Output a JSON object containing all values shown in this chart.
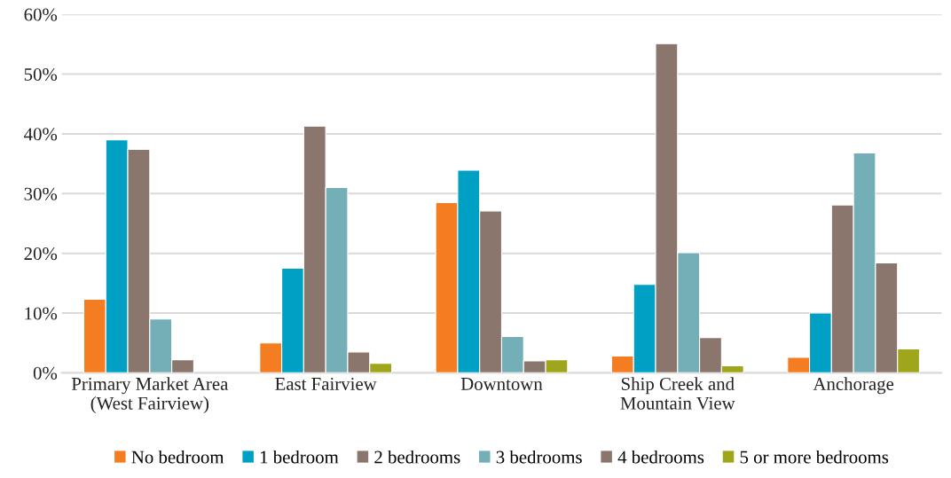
{
  "chart_data": {
    "type": "bar",
    "categories": [
      "Primary Market Area\n(West Fairview)",
      "East Fairview",
      "Downtown",
      "Ship Creek and\nMountain View",
      "Anchorage"
    ],
    "series": [
      {
        "name": "No bedroom",
        "color": "#f47d21",
        "values": [
          12.3,
          5.0,
          28.5,
          2.8,
          2.6
        ]
      },
      {
        "name": "1 bedroom",
        "color": "#00a0c4",
        "values": [
          39.0,
          17.5,
          33.9,
          14.8,
          10.0
        ]
      },
      {
        "name": "2 bedrooms",
        "color": "#8a766c",
        "values": [
          37.4,
          41.3,
          27.1,
          55.1,
          28.1
        ]
      },
      {
        "name": "3 bedrooms",
        "color": "#74afb7",
        "values": [
          9.0,
          31.0,
          6.1,
          20.1,
          36.8
        ]
      },
      {
        "name": "4 bedrooms",
        "color": "#8a766c",
        "values": [
          2.2,
          3.5,
          2.0,
          5.9,
          18.4
        ]
      },
      {
        "name": "5 or more bedrooms",
        "color": "#a0a61c",
        "values": [
          null,
          1.6,
          2.2,
          1.2,
          4.0
        ]
      }
    ],
    "ylim": [
      0,
      60
    ],
    "yticks": [
      {
        "value": 0,
        "label": "0%"
      },
      {
        "value": 10,
        "label": "10%"
      },
      {
        "value": 20,
        "label": "20%"
      },
      {
        "value": 30,
        "label": "30%"
      },
      {
        "value": 40,
        "label": "40%"
      },
      {
        "value": 50,
        "label": "50%"
      },
      {
        "value": 60,
        "label": "60%"
      }
    ],
    "grid": "y",
    "legend": "bottom"
  }
}
